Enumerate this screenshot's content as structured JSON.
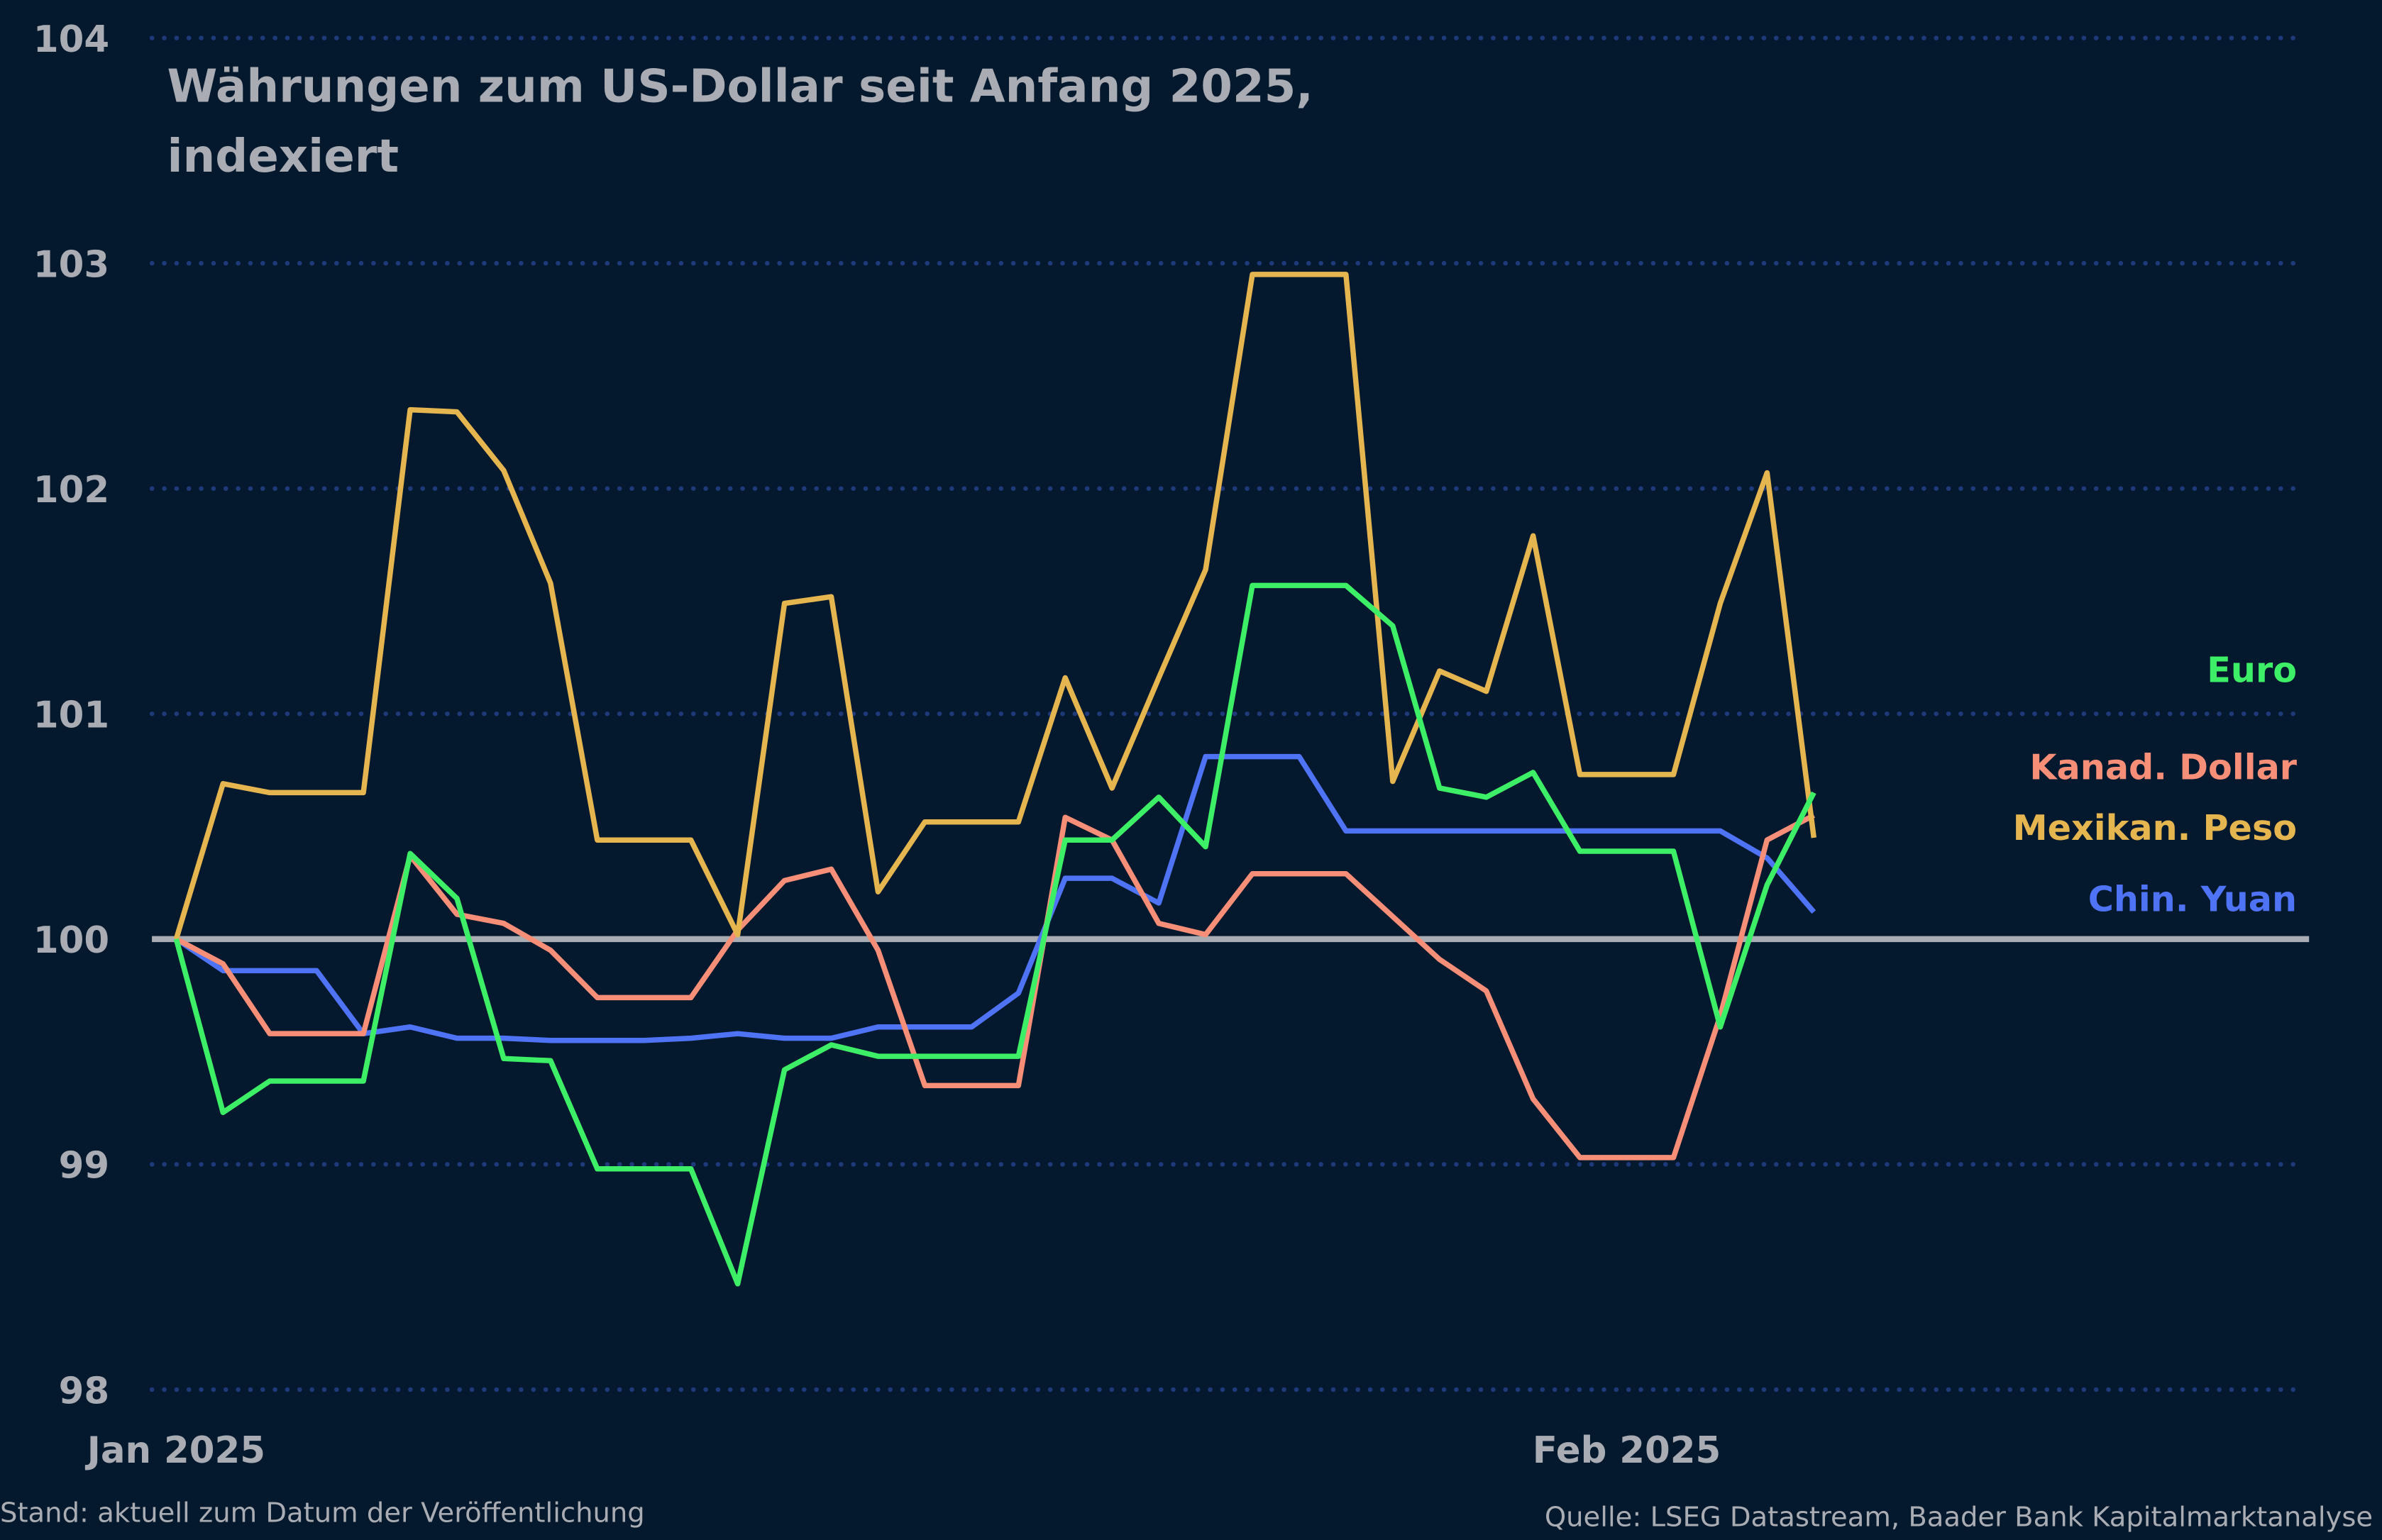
{
  "chart_data": {
    "type": "line",
    "title": [
      "Währungen zum US-Dollar seit Anfang 2025,",
      "indexiert"
    ],
    "xlabel": "",
    "ylabel": "",
    "ylim": [
      98,
      104
    ],
    "yticks": [
      "98",
      "99",
      "100",
      "101",
      "102",
      "103",
      "104"
    ],
    "xticks": [
      {
        "label": "Jan 2025",
        "date": "2025-01-01"
      },
      {
        "label": "Feb 2025",
        "date": "2025-02-01"
      }
    ],
    "x_start": "2025-01-01",
    "x_end_axis": "2025-02-14",
    "grid": true,
    "baseline": 100,
    "legend": "right, inline labels",
    "x": [
      "2025-01-01",
      "2025-01-02",
      "2025-01-03",
      "2025-01-04",
      "2025-01-05",
      "2025-01-06",
      "2025-01-07",
      "2025-01-08",
      "2025-01-09",
      "2025-01-10",
      "2025-01-11",
      "2025-01-12",
      "2025-01-13",
      "2025-01-14",
      "2025-01-15",
      "2025-01-16",
      "2025-01-17",
      "2025-01-18",
      "2025-01-19",
      "2025-01-20",
      "2025-01-21",
      "2025-01-22",
      "2025-01-23",
      "2025-01-24",
      "2025-01-25",
      "2025-01-26",
      "2025-01-27",
      "2025-01-28",
      "2025-01-29",
      "2025-01-30",
      "2025-01-31",
      "2025-02-01",
      "2025-02-02",
      "2025-02-03",
      "2025-02-04",
      "2025-02-05"
    ],
    "series": [
      {
        "name": "Euro",
        "color": "#3def67",
        "values": [
          100,
          99.23,
          99.37,
          99.37,
          99.37,
          100.38,
          100.18,
          99.47,
          99.46,
          98.98,
          98.98,
          98.98,
          98.47,
          99.42,
          99.53,
          99.48,
          99.48,
          99.48,
          99.48,
          100.44,
          100.44,
          100.63,
          100.41,
          101.57,
          101.57,
          101.57,
          101.39,
          100.67,
          100.63,
          100.74,
          100.39,
          100.39,
          100.39,
          99.61,
          100.24,
          100.65
        ]
      },
      {
        "name": "Kanad. Dollar",
        "color": "#f78f78",
        "values": [
          100,
          99.89,
          99.58,
          99.58,
          99.58,
          100.37,
          100.11,
          100.07,
          99.95,
          99.74,
          99.74,
          99.74,
          100.04,
          100.26,
          100.31,
          99.95,
          99.35,
          99.35,
          99.35,
          100.54,
          100.44,
          100.07,
          100.02,
          100.29,
          100.29,
          100.29,
          100.1,
          99.91,
          99.77,
          99.29,
          99.03,
          99.03,
          99.03,
          99.66,
          100.44,
          100.55
        ]
      },
      {
        "name": "Mexikan. Peso",
        "color": "#e5b64f",
        "values": [
          100,
          100.69,
          100.65,
          100.65,
          100.65,
          102.35,
          102.34,
          102.08,
          101.58,
          100.44,
          100.44,
          100.44,
          100.02,
          101.49,
          101.52,
          100.21,
          100.52,
          100.52,
          100.52,
          101.16,
          100.67,
          101.16,
          101.64,
          102.95,
          102.95,
          102.95,
          100.7,
          101.19,
          101.1,
          101.79,
          100.73,
          100.73,
          100.73,
          101.49,
          102.07,
          100.45
        ]
      },
      {
        "name": "Chin. Yuan",
        "color": "#4f73f5",
        "values": [
          100,
          99.86,
          99.86,
          99.86,
          99.58,
          99.61,
          99.56,
          99.56,
          99.55,
          99.55,
          99.55,
          99.56,
          99.58,
          99.56,
          99.56,
          99.61,
          99.61,
          99.61,
          99.76,
          100.27,
          100.27,
          100.16,
          100.81,
          100.81,
          100.81,
          100.48,
          100.48,
          100.48,
          100.48,
          100.48,
          100.48,
          100.48,
          100.48,
          100.48,
          100.36,
          100.12
        ]
      }
    ],
    "footer_left": "Stand: aktuell zum Datum der Veröffentlichung",
    "footer_right": "Quelle: LSEG Datastream, Baader Bank Kapitalmarktanalyse"
  },
  "colors": {
    "background": "#04182e",
    "grid": "#1f3a7a",
    "baseline": "#a9adb3",
    "text": "#a9adb3"
  }
}
